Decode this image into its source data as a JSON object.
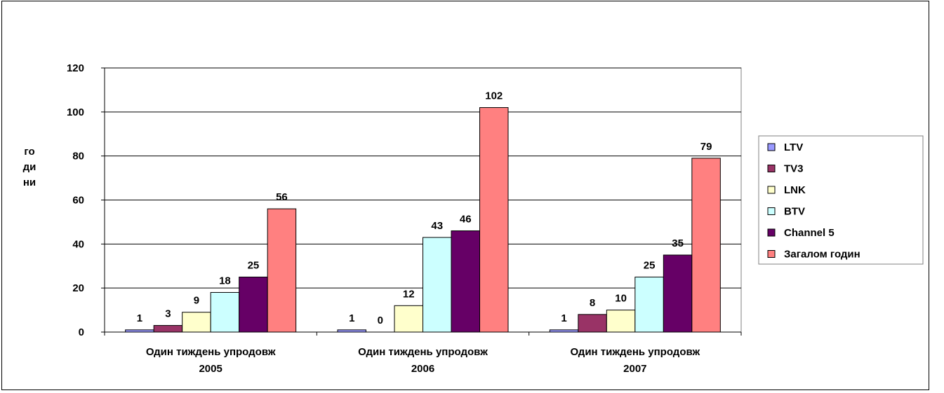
{
  "chart_data": {
    "type": "bar",
    "title": "",
    "ylabel_lines": [
      "го",
      "ди",
      "ни"
    ],
    "categories": [
      [
        "Один тиждень упродовж",
        "2005"
      ],
      [
        "Один тиждень упродовж",
        "2006"
      ],
      [
        "Один тиждень упродовж",
        "2007"
      ]
    ],
    "ylim": [
      0,
      120
    ],
    "yticks": [
      "0",
      "20",
      "40",
      "60",
      "80",
      "100",
      "120"
    ],
    "grid": true,
    "legend_position": "right",
    "series": [
      {
        "name": "LTV",
        "color": "#9999ff",
        "values": [
          1,
          1,
          1
        ]
      },
      {
        "name": "TV3",
        "color": "#993366",
        "values": [
          3,
          0,
          8
        ]
      },
      {
        "name": "LNK",
        "color": "#ffffcc",
        "values": [
          9,
          12,
          10
        ]
      },
      {
        "name": "BTV",
        "color": "#ccffff",
        "values": [
          18,
          43,
          25
        ]
      },
      {
        "name": "Channel 5",
        "color": "#660066",
        "values": [
          25,
          46,
          35
        ]
      },
      {
        "name": "Загалом годин",
        "color": "#ff8080",
        "values": [
          56,
          102,
          79
        ]
      }
    ]
  }
}
